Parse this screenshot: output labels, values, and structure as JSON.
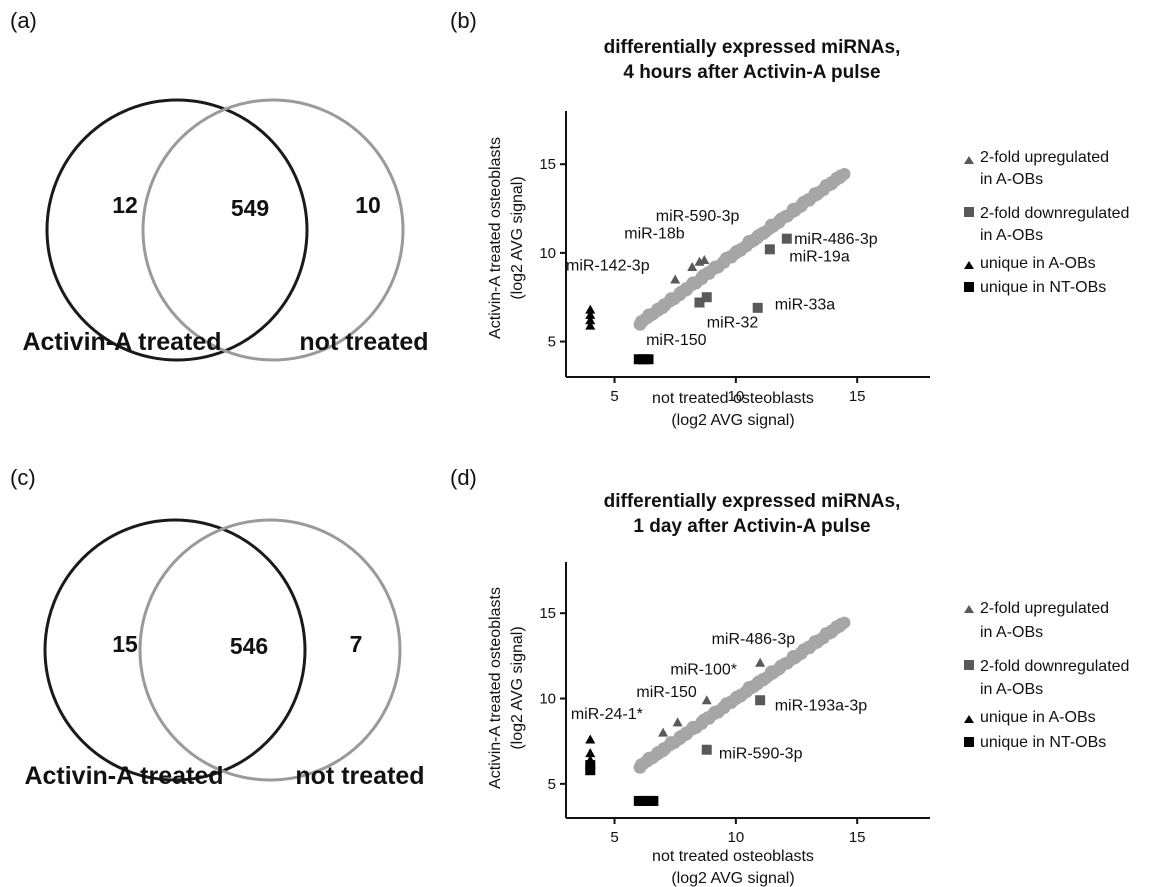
{
  "panels": {
    "a": "(a)",
    "b": "(b)",
    "c": "(c)",
    "d": "(d)"
  },
  "venn": [
    {
      "left_only": "12",
      "both": "549",
      "right_only": "10",
      "left_label": "Activin-A treated",
      "right_label": "not treated",
      "left_color": "#1a1a1a",
      "right_color": "#9a9a9a"
    },
    {
      "left_only": "15",
      "both": "546",
      "right_only": "7",
      "left_label": "Activin-A treated",
      "right_label": "not treated",
      "left_color": "#1a1a1a",
      "right_color": "#9a9a9a"
    }
  ],
  "colors": {
    "bulk": "#a6a6a6",
    "regulated": "#595959",
    "unique": "#000000"
  },
  "legend": {
    "up_line1": "2-fold upregulated",
    "up_line2": "in A-OBs",
    "down_line1": "2-fold downregulated",
    "down_line2": "in A-OBs",
    "uniqueA": "unique in A-OBs",
    "uniqueNT": "unique in NT-OBs"
  },
  "chart_data": [
    {
      "type": "scatter",
      "title_line1": "differentially expressed miRNAs,",
      "title_line2": "4 hours after Activin-A pulse",
      "xlabel_line1": "not treated osteoblasts",
      "xlabel_line2": "(log2 AVG signal)",
      "ylabel_line1": "Activin-A treated osteoblasts",
      "ylabel_line2": "(log2 AVG signal)",
      "xlim": [
        3,
        18
      ],
      "ylim": [
        3,
        18
      ],
      "xticks": [
        5,
        10,
        15
      ],
      "yticks": [
        5,
        10,
        15
      ],
      "bulk_trend": {
        "x_start": 6,
        "x_end": 14.5
      },
      "series": [
        {
          "name": "2-fold upregulated in A-OBs",
          "marker": "triangle",
          "points": [
            [
              7.5,
              8.5
            ],
            [
              8.2,
              9.2
            ],
            [
              8.5,
              9.5
            ],
            [
              8.7,
              9.6
            ]
          ]
        },
        {
          "name": "2-fold downregulated in A-OBs",
          "marker": "square",
          "points": [
            [
              8.5,
              7.2
            ],
            [
              8.8,
              7.5
            ],
            [
              10.9,
              6.9
            ],
            [
              11.4,
              10.2
            ],
            [
              12.1,
              10.8
            ]
          ]
        },
        {
          "name": "unique in A-OBs",
          "marker": "triangle",
          "points": [
            [
              4,
              5.9
            ],
            [
              4,
              6.2
            ],
            [
              4,
              6.5
            ],
            [
              4,
              6.8
            ]
          ]
        },
        {
          "name": "unique in NT-OBs",
          "marker": "square",
          "points": [
            [
              6.0,
              4
            ],
            [
              6.2,
              4
            ],
            [
              6.4,
              4
            ]
          ]
        }
      ],
      "annotations": [
        {
          "text": "miR-590-3p",
          "x": 6.7,
          "y": 11.8
        },
        {
          "text": "miR-18b",
          "x": 5.4,
          "y": 10.8
        },
        {
          "text": "miR-142-3p",
          "x": 3.0,
          "y": 9.0
        },
        {
          "text": "miR-486-3p",
          "x": 12.4,
          "y": 10.5
        },
        {
          "text": "miR-19a",
          "x": 12.2,
          "y": 9.5
        },
        {
          "text": "miR-33a",
          "x": 11.6,
          "y": 6.8
        },
        {
          "text": "miR-32",
          "x": 8.8,
          "y": 5.8
        },
        {
          "text": "miR-150",
          "x": 6.3,
          "y": 4.8
        }
      ]
    },
    {
      "type": "scatter",
      "title_line1": "differentially expressed miRNAs,",
      "title_line2": "1 day after Activin-A pulse",
      "xlabel_line1": "not treated osteoblasts",
      "xlabel_line2": "(log2 AVG signal)",
      "ylabel_line1": "Activin-A treated osteoblasts",
      "ylabel_line2": "(log2 AVG signal)",
      "xlim": [
        3,
        18
      ],
      "ylim": [
        3,
        18
      ],
      "xticks": [
        5,
        10,
        15
      ],
      "yticks": [
        5,
        10,
        15
      ],
      "bulk_trend": {
        "x_start": 6,
        "x_end": 14.5
      },
      "series": [
        {
          "name": "2-fold upregulated in A-OBs",
          "marker": "triangle",
          "points": [
            [
              7.0,
              8.0
            ],
            [
              7.6,
              8.6
            ],
            [
              8.8,
              9.9
            ],
            [
              11.0,
              12.1
            ]
          ]
        },
        {
          "name": "2-fold downregulated in A-OBs",
          "marker": "square",
          "points": [
            [
              8.8,
              7.0
            ],
            [
              11.0,
              9.9
            ]
          ]
        },
        {
          "name": "unique in A-OBs",
          "marker": "triangle",
          "points": [
            [
              4,
              6.0
            ],
            [
              4,
              6.4
            ],
            [
              4,
              6.8
            ],
            [
              4,
              7.6
            ]
          ]
        },
        {
          "name": "unique in NT-OBs",
          "marker": "square",
          "points": [
            [
              4,
              5.8
            ],
            [
              4,
              6.1
            ],
            [
              6.0,
              4
            ],
            [
              6.2,
              4
            ],
            [
              6.4,
              4
            ],
            [
              6.6,
              4
            ]
          ]
        }
      ],
      "annotations": [
        {
          "text": "miR-486-3p",
          "x": 9.0,
          "y": 13.2
        },
        {
          "text": "miR-100*",
          "x": 7.3,
          "y": 11.4
        },
        {
          "text": "miR-150",
          "x": 5.9,
          "y": 10.1
        },
        {
          "text": "miR-24-1*",
          "x": 3.2,
          "y": 8.8
        },
        {
          "text": "miR-193a-3p",
          "x": 11.6,
          "y": 9.3
        },
        {
          "text": "miR-590-3p",
          "x": 9.3,
          "y": 6.5
        }
      ]
    }
  ]
}
